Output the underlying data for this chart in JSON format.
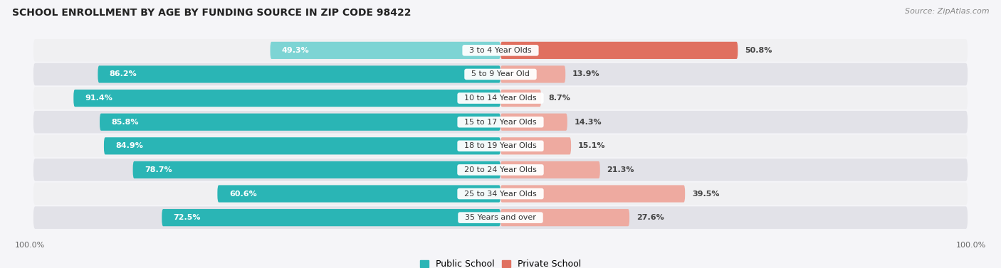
{
  "title": "SCHOOL ENROLLMENT BY AGE BY FUNDING SOURCE IN ZIP CODE 98422",
  "source": "Source: ZipAtlas.com",
  "categories": [
    "3 to 4 Year Olds",
    "5 to 9 Year Old",
    "10 to 14 Year Olds",
    "15 to 17 Year Olds",
    "18 to 19 Year Olds",
    "20 to 24 Year Olds",
    "25 to 34 Year Olds",
    "35 Years and over"
  ],
  "public_values": [
    49.3,
    86.2,
    91.4,
    85.8,
    84.9,
    78.7,
    60.6,
    72.5
  ],
  "private_values": [
    50.8,
    13.9,
    8.7,
    14.3,
    15.1,
    21.3,
    39.5,
    27.6
  ],
  "public_color_dark": "#2ab5b5",
  "public_color_light": "#7dd4d4",
  "private_color_dark": "#e07060",
  "private_color_light": "#eeaaa0",
  "row_bg_odd": "#f0f0f2",
  "row_bg_even": "#e2e2e8",
  "background_color": "#f5f5f8",
  "title_fontsize": 10,
  "source_fontsize": 8,
  "bar_label_fontsize": 8,
  "category_fontsize": 8,
  "legend_fontsize": 9,
  "axis_label_fontsize": 8,
  "figwidth": 14.06,
  "figheight": 3.77
}
